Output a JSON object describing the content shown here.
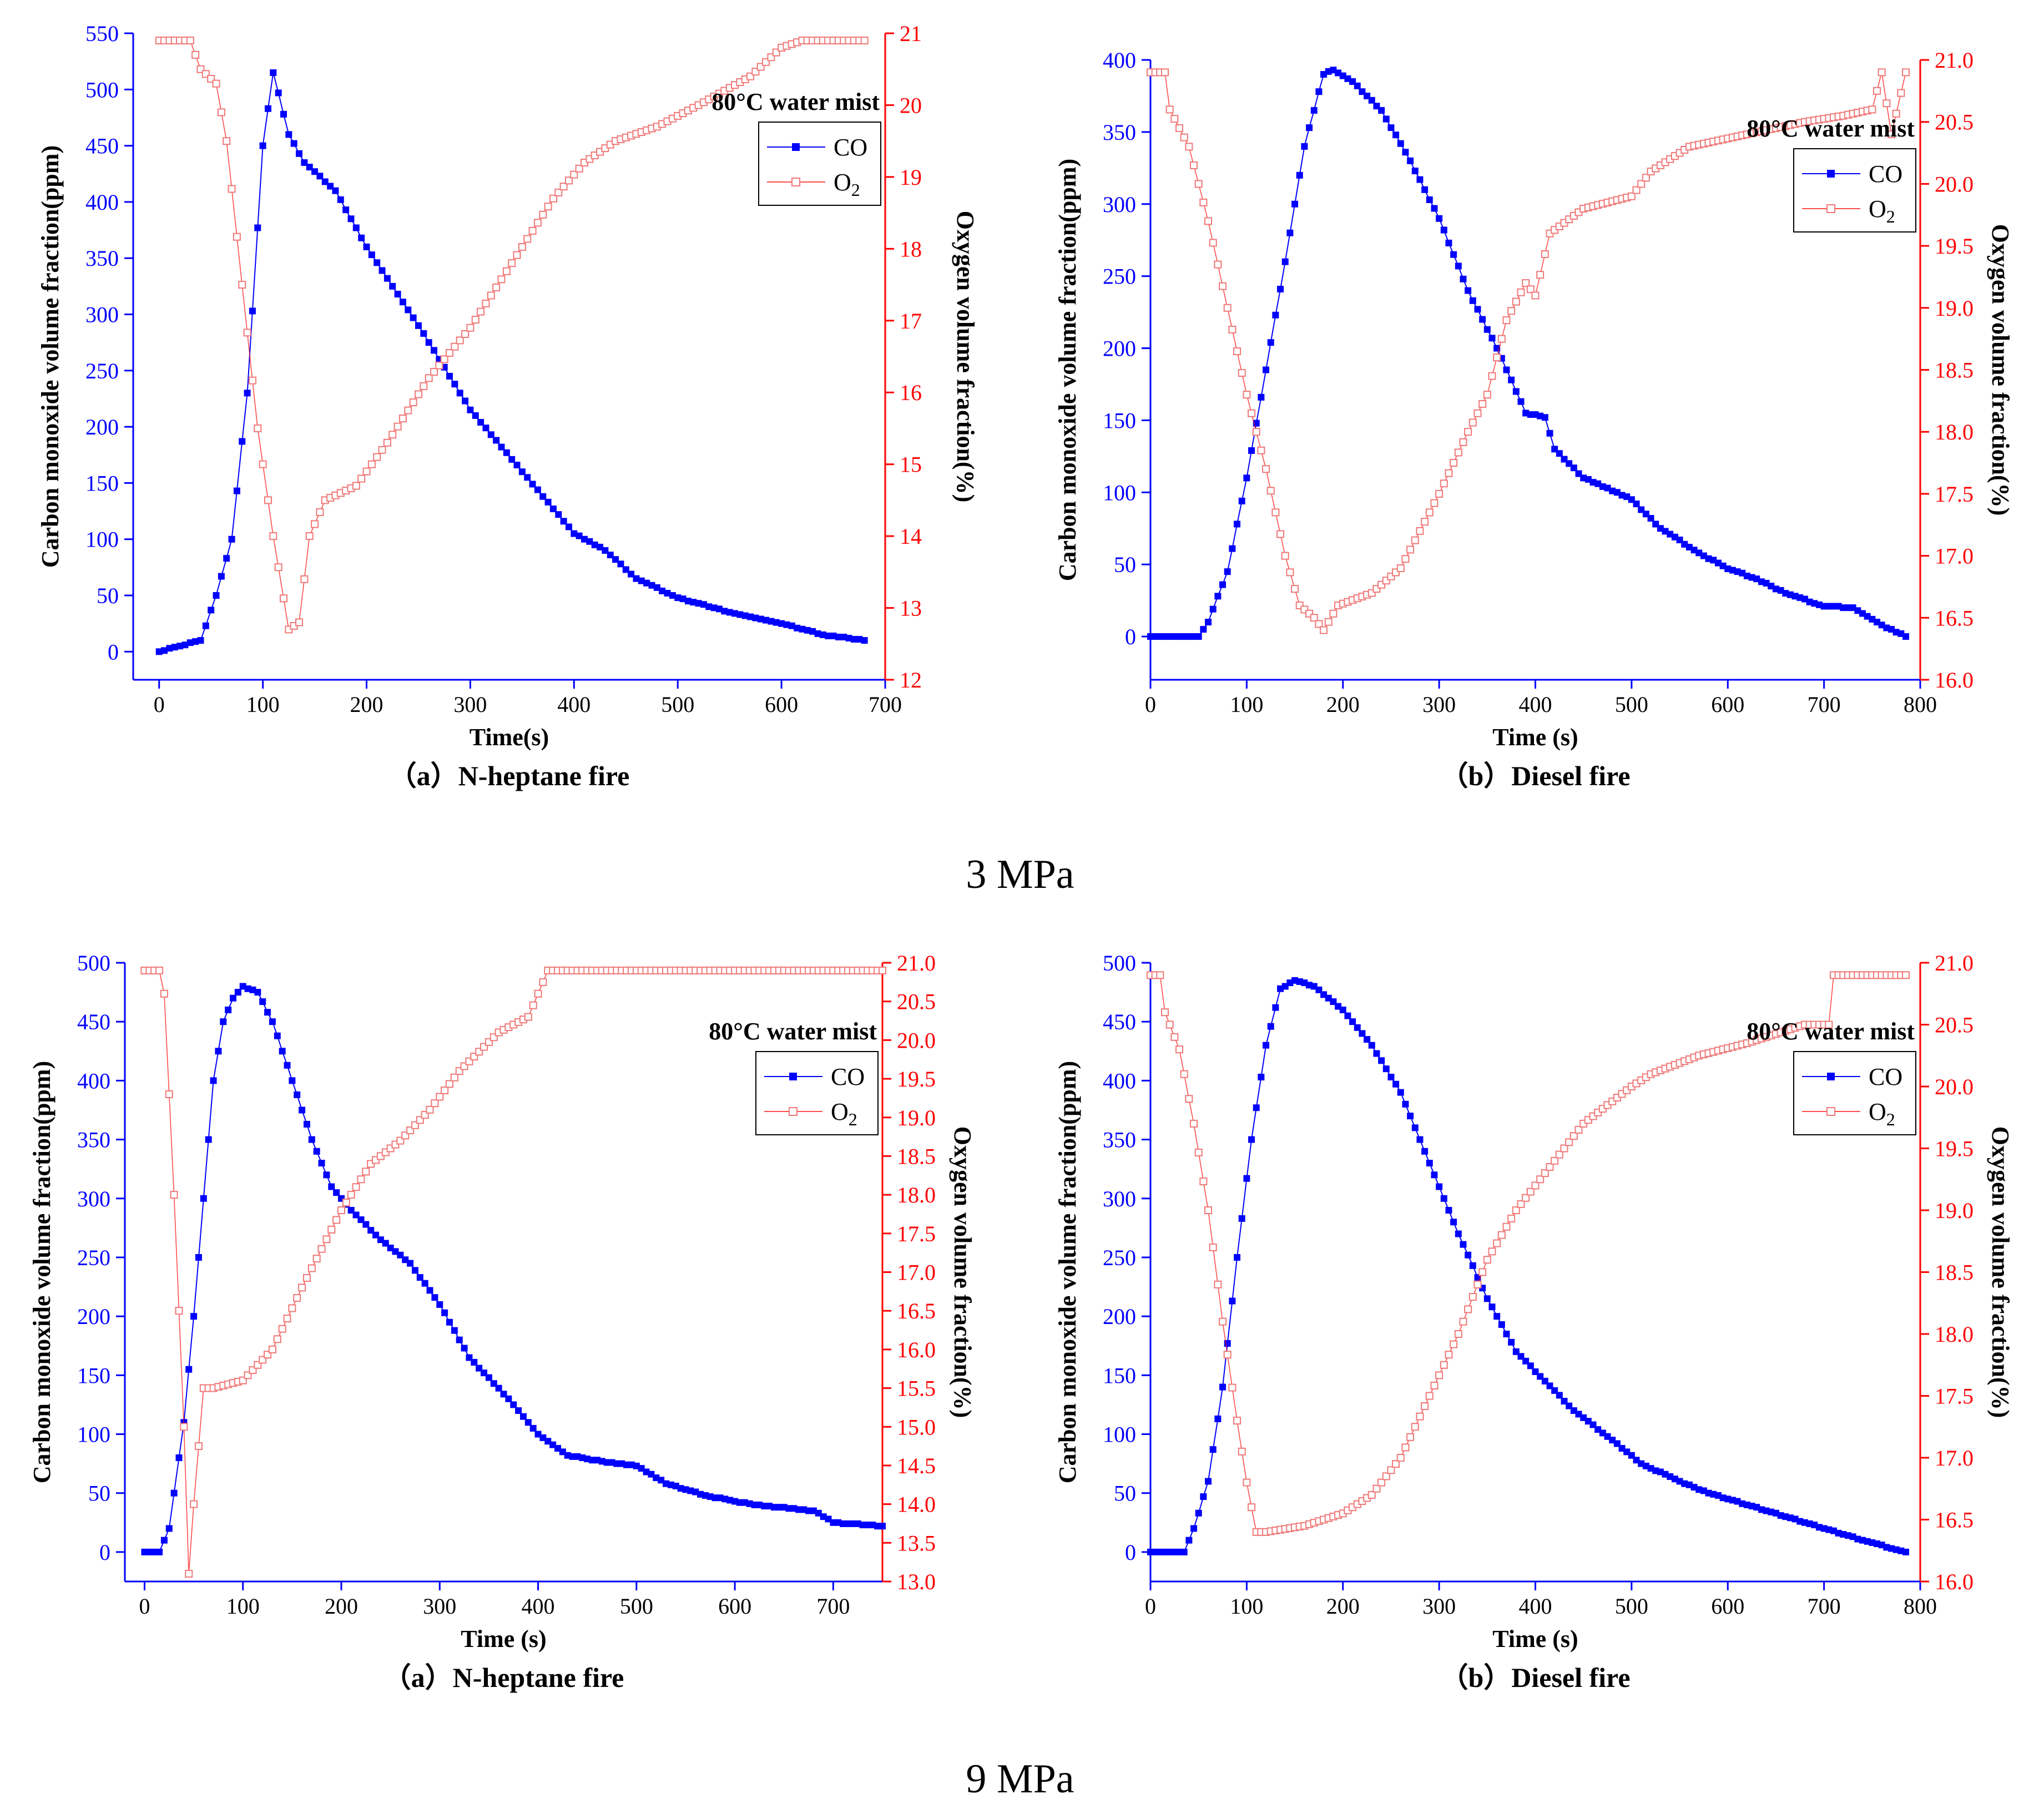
{
  "colors": {
    "co": "#0000ff",
    "o2": "#ff0000",
    "o2_marker": "#f07878",
    "text": "#000000"
  },
  "sections": [
    "3 MPa",
    "9 MPa"
  ],
  "chart_data": [
    {
      "type": "line",
      "caption": "（a）N-heptane fire",
      "xlabel": "Time(s)",
      "ylabel": "Carbon monoxide volume fraction(ppm)",
      "y2label": "Oxygen volume fraction(%)",
      "annotation": "80°C water mist",
      "xlim": [
        -25,
        700
      ],
      "ylim": [
        -25,
        550
      ],
      "y2lim": [
        12,
        21
      ],
      "xticks": [
        "0",
        "100",
        "200",
        "300",
        "400",
        "500",
        "600",
        "700"
      ],
      "yticks": [
        "0",
        "50",
        "100",
        "150",
        "200",
        "250",
        "300",
        "350",
        "400",
        "450",
        "500",
        "550"
      ],
      "y2ticks": [
        "12",
        "13",
        "14",
        "15",
        "16",
        "17",
        "18",
        "19",
        "20",
        "21"
      ],
      "legend": [
        "CO",
        "O2"
      ],
      "legend_sub": "2",
      "step": 5,
      "x_end": 680,
      "series": [
        {
          "name": "CO",
          "axis": "left",
          "knots": [
            [
              0,
              0
            ],
            [
              20,
              5
            ],
            [
              40,
              10
            ],
            [
              55,
              50
            ],
            [
              70,
              100
            ],
            [
              85,
              230
            ],
            [
              100,
              450
            ],
            [
              110,
              515
            ],
            [
              125,
              460
            ],
            [
              140,
              435
            ],
            [
              170,
              410
            ],
            [
              200,
              360
            ],
            [
              250,
              290
            ],
            [
              300,
              215
            ],
            [
              350,
              160
            ],
            [
              400,
              105
            ],
            [
              430,
              90
            ],
            [
              460,
              65
            ],
            [
              500,
              48
            ],
            [
              550,
              35
            ],
            [
              600,
              25
            ],
            [
              640,
              15
            ],
            [
              680,
              10
            ]
          ]
        },
        {
          "name": "O2",
          "axis": "right",
          "knots": [
            [
              0,
              20.9
            ],
            [
              30,
              20.9
            ],
            [
              40,
              20.5
            ],
            [
              55,
              20.3
            ],
            [
              65,
              19.5
            ],
            [
              80,
              17.5
            ],
            [
              95,
              15.5
            ],
            [
              110,
              14.0
            ],
            [
              125,
              12.7
            ],
            [
              135,
              12.8
            ],
            [
              145,
              14.0
            ],
            [
              160,
              14.5
            ],
            [
              190,
              14.7
            ],
            [
              220,
              15.3
            ],
            [
              260,
              16.2
            ],
            [
              300,
              16.9
            ],
            [
              340,
              17.8
            ],
            [
              380,
              18.7
            ],
            [
              410,
              19.2
            ],
            [
              440,
              19.5
            ],
            [
              480,
              19.7
            ],
            [
              520,
              20.0
            ],
            [
              570,
              20.4
            ],
            [
              600,
              20.8
            ],
            [
              620,
              20.9
            ],
            [
              680,
              20.9
            ]
          ]
        }
      ]
    },
    {
      "type": "line",
      "caption": "（b）Diesel fire",
      "xlabel": "Time (s)",
      "ylabel": "Carbon monoxide volume fraction(ppm)",
      "y2label": "Oxygen volume fraction(%)",
      "annotation": "80°C water mist",
      "xlim": [
        0,
        800
      ],
      "ylim": [
        -30,
        400
      ],
      "y2lim": [
        16,
        21
      ],
      "xticks": [
        "0",
        "100",
        "200",
        "300",
        "400",
        "500",
        "600",
        "700",
        "800"
      ],
      "yticks": [
        "0",
        "50",
        "100",
        "150",
        "200",
        "250",
        "300",
        "350",
        "400"
      ],
      "y2ticks": [
        "16.0",
        "16.5",
        "17.0",
        "17.5",
        "18.0",
        "18.5",
        "19.0",
        "19.5",
        "20.0",
        "20.5",
        "21.0"
      ],
      "legend": [
        "CO",
        "O2"
      ],
      "legend_sub": "2",
      "step": 5,
      "x_end": 785,
      "series": [
        {
          "name": "CO",
          "axis": "left",
          "knots": [
            [
              0,
              0
            ],
            [
              50,
              0
            ],
            [
              60,
              10
            ],
            [
              80,
              45
            ],
            [
              100,
              110
            ],
            [
              120,
              185
            ],
            [
              140,
              260
            ],
            [
              160,
              340
            ],
            [
              180,
              390
            ],
            [
              190,
              393
            ],
            [
              210,
              385
            ],
            [
              240,
              365
            ],
            [
              270,
              330
            ],
            [
              300,
              290
            ],
            [
              330,
              240
            ],
            [
              360,
              200
            ],
            [
              390,
              155
            ],
            [
              410,
              152
            ],
            [
              420,
              130
            ],
            [
              450,
              110
            ],
            [
              500,
              95
            ],
            [
              530,
              75
            ],
            [
              570,
              58
            ],
            [
              600,
              47
            ],
            [
              630,
              40
            ],
            [
              660,
              30
            ],
            [
              700,
              21
            ],
            [
              730,
              20
            ],
            [
              760,
              8
            ],
            [
              785,
              0
            ]
          ]
        },
        {
          "name": "O2",
          "axis": "right",
          "knots": [
            [
              0,
              20.9
            ],
            [
              15,
              20.9
            ],
            [
              20,
              20.6
            ],
            [
              40,
              20.3
            ],
            [
              60,
              19.7
            ],
            [
              80,
              19.0
            ],
            [
              100,
              18.3
            ],
            [
              120,
              17.7
            ],
            [
              140,
              17.0
            ],
            [
              155,
              16.6
            ],
            [
              170,
              16.5
            ],
            [
              180,
              16.4
            ],
            [
              195,
              16.6
            ],
            [
              230,
              16.7
            ],
            [
              260,
              16.9
            ],
            [
              300,
              17.5
            ],
            [
              330,
              18.0
            ],
            [
              350,
              18.3
            ],
            [
              370,
              18.9
            ],
            [
              390,
              19.2
            ],
            [
              400,
              19.1
            ],
            [
              415,
              19.6
            ],
            [
              450,
              19.8
            ],
            [
              500,
              19.9
            ],
            [
              520,
              20.1
            ],
            [
              560,
              20.3
            ],
            [
              620,
              20.4
            ],
            [
              680,
              20.5
            ],
            [
              720,
              20.55
            ],
            [
              750,
              20.6
            ],
            [
              760,
              20.9
            ],
            [
              770,
              20.4
            ],
            [
              785,
              20.9
            ]
          ]
        }
      ]
    },
    {
      "type": "line",
      "caption": "（a）N-heptane fire",
      "xlabel": "Time (s)",
      "ylabel": "Carbon monoxide volume fraction(ppm)",
      "y2label": "Oxygen volume fraction(%)",
      "annotation": "80°C water mist",
      "xlim": [
        -20,
        750
      ],
      "ylim": [
        -25,
        500
      ],
      "y2lim": [
        13,
        21
      ],
      "xticks": [
        "0",
        "100",
        "200",
        "300",
        "400",
        "500",
        "600",
        "700"
      ],
      "yticks": [
        "0",
        "50",
        "100",
        "150",
        "200",
        "250",
        "300",
        "350",
        "400",
        "450",
        "500"
      ],
      "y2ticks": [
        "13.0",
        "13.5",
        "14.0",
        "14.5",
        "15.0",
        "15.5",
        "16.0",
        "16.5",
        "17.0",
        "17.5",
        "18.0",
        "18.5",
        "19.0",
        "19.5",
        "20.0",
        "20.5",
        "21.0"
      ],
      "legend": [
        "CO",
        "O2"
      ],
      "legend_sub": "2",
      "step": 5,
      "x_end": 750,
      "series": [
        {
          "name": "CO",
          "axis": "left",
          "knots": [
            [
              0,
              0
            ],
            [
              15,
              0
            ],
            [
              25,
              20
            ],
            [
              40,
              110
            ],
            [
              50,
              200
            ],
            [
              60,
              300
            ],
            [
              70,
              400
            ],
            [
              80,
              450
            ],
            [
              90,
              470
            ],
            [
              100,
              480
            ],
            [
              115,
              475
            ],
            [
              130,
              450
            ],
            [
              150,
              400
            ],
            [
              170,
              350
            ],
            [
              190,
              310
            ],
            [
              210,
              290
            ],
            [
              240,
              265
            ],
            [
              270,
              245
            ],
            [
              300,
              210
            ],
            [
              330,
              165
            ],
            [
              370,
              130
            ],
            [
              400,
              100
            ],
            [
              430,
              82
            ],
            [
              470,
              76
            ],
            [
              500,
              73
            ],
            [
              530,
              58
            ],
            [
              570,
              48
            ],
            [
              620,
              40
            ],
            [
              680,
              35
            ],
            [
              700,
              25
            ],
            [
              750,
              22
            ]
          ]
        },
        {
          "name": "O2",
          "axis": "right",
          "knots": [
            [
              0,
              20.9
            ],
            [
              15,
              20.9
            ],
            [
              20,
              20.6
            ],
            [
              30,
              18.0
            ],
            [
              40,
              15.0
            ],
            [
              45,
              13.1
            ],
            [
              50,
              14.0
            ],
            [
              60,
              15.5
            ],
            [
              70,
              15.5
            ],
            [
              100,
              15.6
            ],
            [
              130,
              16.0
            ],
            [
              160,
              16.8
            ],
            [
              200,
              17.8
            ],
            [
              230,
              18.4
            ],
            [
              260,
              18.7
            ],
            [
              290,
              19.1
            ],
            [
              320,
              19.6
            ],
            [
              360,
              20.1
            ],
            [
              390,
              20.3
            ],
            [
              410,
              20.9
            ],
            [
              750,
              20.9
            ]
          ]
        }
      ]
    },
    {
      "type": "line",
      "caption": "（b）Diesel fire",
      "xlabel": "Time (s)",
      "ylabel": "Carbon monoxide volume fraction(ppm)",
      "y2label": "Oxygen volume fraction(%)",
      "annotation": "80°C water mist",
      "xlim": [
        0,
        800
      ],
      "ylim": [
        -25,
        500
      ],
      "y2lim": [
        16,
        21
      ],
      "xticks": [
        "0",
        "100",
        "200",
        "300",
        "400",
        "500",
        "600",
        "700",
        "800"
      ],
      "yticks": [
        "0",
        "50",
        "100",
        "150",
        "200",
        "250",
        "300",
        "350",
        "400",
        "450",
        "500"
      ],
      "y2ticks": [
        "16.0",
        "16.5",
        "17.0",
        "17.5",
        "18.0",
        "18.5",
        "19.0",
        "19.5",
        "20.0",
        "20.5",
        "21.0"
      ],
      "legend": [
        "CO",
        "O2"
      ],
      "legend_sub": "2",
      "step": 5,
      "x_end": 785,
      "series": [
        {
          "name": "CO",
          "axis": "left",
          "knots": [
            [
              0,
              0
            ],
            [
              35,
              0
            ],
            [
              45,
              20
            ],
            [
              60,
              60
            ],
            [
              75,
              140
            ],
            [
              90,
              250
            ],
            [
              105,
              350
            ],
            [
              120,
              430
            ],
            [
              135,
              478
            ],
            [
              150,
              485
            ],
            [
              170,
              480
            ],
            [
              200,
              460
            ],
            [
              230,
              430
            ],
            [
              260,
              390
            ],
            [
              290,
              330
            ],
            [
              320,
              270
            ],
            [
              350,
              215
            ],
            [
              380,
              170
            ],
            [
              410,
              145
            ],
            [
              440,
              120
            ],
            [
              480,
              95
            ],
            [
              510,
              75
            ],
            [
              550,
              60
            ],
            [
              580,
              50
            ],
            [
              620,
              40
            ],
            [
              660,
              30
            ],
            [
              700,
              20
            ],
            [
              740,
              10
            ],
            [
              785,
              0
            ]
          ]
        },
        {
          "name": "O2",
          "axis": "right",
          "knots": [
            [
              0,
              20.9
            ],
            [
              10,
              20.9
            ],
            [
              15,
              20.6
            ],
            [
              30,
              20.3
            ],
            [
              45,
              19.7
            ],
            [
              60,
              19.0
            ],
            [
              75,
              18.1
            ],
            [
              90,
              17.3
            ],
            [
              100,
              16.8
            ],
            [
              110,
              16.4
            ],
            [
              120,
              16.4
            ],
            [
              160,
              16.45
            ],
            [
              200,
              16.55
            ],
            [
              230,
              16.7
            ],
            [
              260,
              17.0
            ],
            [
              290,
              17.5
            ],
            [
              320,
              18.0
            ],
            [
              350,
              18.6
            ],
            [
              380,
              19.0
            ],
            [
              410,
              19.3
            ],
            [
              450,
              19.7
            ],
            [
              500,
              20.0
            ],
            [
              520,
              20.1
            ],
            [
              570,
              20.25
            ],
            [
              620,
              20.35
            ],
            [
              680,
              20.5
            ],
            [
              705,
              20.5
            ],
            [
              710,
              20.9
            ],
            [
              785,
              20.9
            ]
          ]
        }
      ]
    }
  ]
}
